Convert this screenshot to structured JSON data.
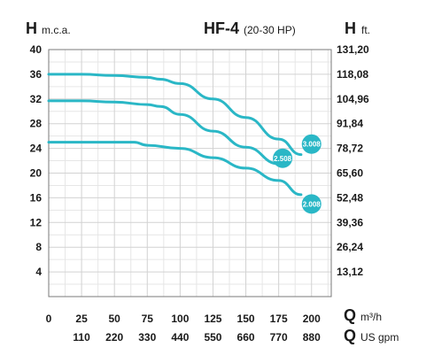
{
  "header": {
    "left_symbol": "H",
    "left_unit": "m.c.a.",
    "title": "HF-4",
    "subtitle": "(20-30 HP)",
    "right_symbol": "H",
    "right_unit": "ft."
  },
  "x_axis": {
    "primary_symbol": "Q",
    "primary_unit": "m³/h",
    "secondary_symbol": "Q",
    "secondary_unit": "US gpm"
  },
  "colors": {
    "curve": "#2ab7c6",
    "grid": "#d2d2d2",
    "text": "#1a1a1a"
  },
  "chart_data": {
    "type": "line",
    "title": "HF-4",
    "subtitle": "(20-30 HP)",
    "xlabel": "Q m³/h",
    "x2label": "Q US gpm",
    "ylabel": "H m.c.a.",
    "y2label": "H ft.",
    "xlim": [
      0,
      215
    ],
    "ylim": [
      0,
      40
    ],
    "grid": true,
    "x_ticks": [
      0,
      25,
      50,
      75,
      100,
      125,
      150,
      175,
      200
    ],
    "x_tick_labels": [
      "0",
      "25",
      "50",
      "75",
      "100",
      "125",
      "150",
      "175",
      "200"
    ],
    "x2_ticks": [
      25,
      50,
      75,
      100,
      125,
      150,
      175,
      200
    ],
    "x2_tick_labels": [
      "110",
      "220",
      "330",
      "440",
      "550",
      "660",
      "770",
      "880"
    ],
    "y_ticks": [
      4,
      8,
      12,
      16,
      20,
      24,
      28,
      32,
      36,
      40
    ],
    "y_tick_labels": [
      "4",
      "8",
      "12",
      "16",
      "20",
      "24",
      "28",
      "32",
      "36",
      "40"
    ],
    "y2_ticks": [
      4,
      8,
      12,
      16,
      20,
      24,
      28,
      32,
      36,
      40
    ],
    "y2_tick_labels": [
      "13,12",
      "26,24",
      "39,36",
      "52,48",
      "65,60",
      "78,72",
      "91,84",
      "104,96",
      "118,08",
      "131,20"
    ],
    "series": [
      {
        "name": "3.008",
        "x": [
          0,
          25,
          50,
          75,
          85,
          100,
          125,
          150,
          175,
          192
        ],
        "y": [
          36,
          36,
          35.8,
          35.5,
          35.2,
          34.5,
          32,
          29,
          25.5,
          23
        ]
      },
      {
        "name": "2.508",
        "x": [
          0,
          25,
          50,
          75,
          85,
          100,
          125,
          150,
          175
        ],
        "y": [
          31.7,
          31.7,
          31.5,
          31.1,
          30.8,
          29.5,
          26.8,
          24.2,
          21.5
        ]
      },
      {
        "name": "2.008",
        "x": [
          0,
          25,
          50,
          65,
          75,
          100,
          125,
          150,
          175,
          192
        ],
        "y": [
          25,
          25,
          25,
          25,
          24.5,
          24,
          22.5,
          20.8,
          18.8,
          16.5
        ]
      }
    ],
    "badges": [
      {
        "label": "3.008",
        "x": 200,
        "y": 24.7
      },
      {
        "label": "2.508",
        "x": 178,
        "y": 22.4
      },
      {
        "label": "2.008",
        "x": 200,
        "y": 15
      }
    ]
  }
}
